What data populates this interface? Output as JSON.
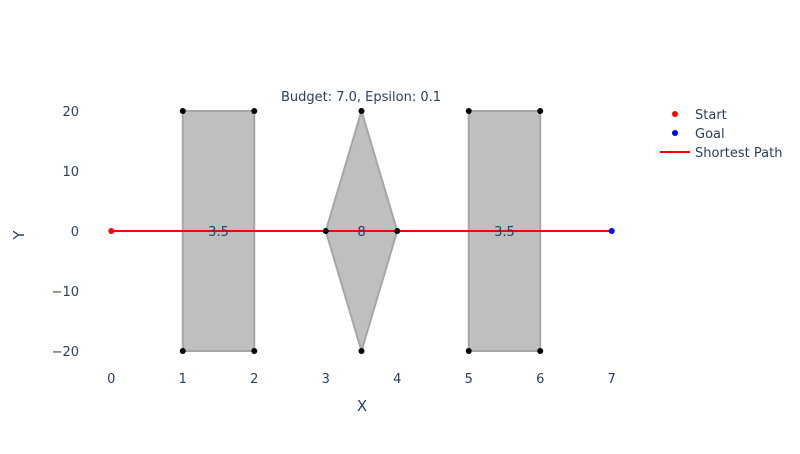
{
  "chart_data": {
    "type": "scatter",
    "title": "Budget: 7.0, Epsilon: 0.1",
    "xlabel": "X",
    "ylabel": "Y",
    "xlim": [
      -0.2,
      7.2
    ],
    "ylim": [
      -22.5,
      22
    ],
    "x_ticks": [
      0,
      1,
      2,
      3,
      4,
      5,
      6,
      7
    ],
    "x_tick_labels": [
      "0",
      "1",
      "2",
      "3",
      "4",
      "5",
      "6",
      "7"
    ],
    "y_ticks": [
      -20,
      -10,
      0,
      10,
      20
    ],
    "y_tick_labels": [
      "−20",
      "−10",
      "0",
      "10",
      "20"
    ],
    "grid": false,
    "legend_position": "top-right",
    "obstacles": [
      {
        "label": "3.5",
        "label_x": 1.5,
        "label_y": 0,
        "vertices": [
          [
            1,
            -20
          ],
          [
            2,
            -20
          ],
          [
            2,
            20
          ],
          [
            1,
            20
          ]
        ]
      },
      {
        "label": "8",
        "label_x": 3.5,
        "label_y": 0,
        "vertices": [
          [
            3,
            0
          ],
          [
            3.5,
            20
          ],
          [
            4,
            0
          ],
          [
            3.5,
            -20
          ]
        ]
      },
      {
        "label": "3.5",
        "label_x": 5.5,
        "label_y": 0,
        "vertices": [
          [
            5,
            -20
          ],
          [
            6,
            -20
          ],
          [
            6,
            20
          ],
          [
            5,
            20
          ]
        ]
      }
    ],
    "vertices": [
      [
        1,
        20
      ],
      [
        2,
        20
      ],
      [
        1,
        -20
      ],
      [
        2,
        -20
      ],
      [
        3,
        0
      ],
      [
        3.5,
        20
      ],
      [
        4,
        0
      ],
      [
        3.5,
        -20
      ],
      [
        5,
        20
      ],
      [
        6,
        20
      ],
      [
        5,
        -20
      ],
      [
        6,
        -20
      ]
    ],
    "series": [
      {
        "name": "Start",
        "mode": "markers",
        "color": "#ff0000",
        "x": [
          0
        ],
        "y": [
          0
        ]
      },
      {
        "name": "Goal",
        "mode": "markers",
        "color": "#0000ff",
        "x": [
          7
        ],
        "y": [
          0
        ]
      },
      {
        "name": "Shortest Path",
        "mode": "line",
        "color": "#ff0000",
        "x": [
          0,
          7
        ],
        "y": [
          0,
          0
        ]
      }
    ],
    "colors": {
      "obstacle_fill": "#bfbfbf",
      "obstacle_stroke": "#a6a6a6",
      "vertex": "#000000",
      "text": "#2a3f5f"
    }
  }
}
